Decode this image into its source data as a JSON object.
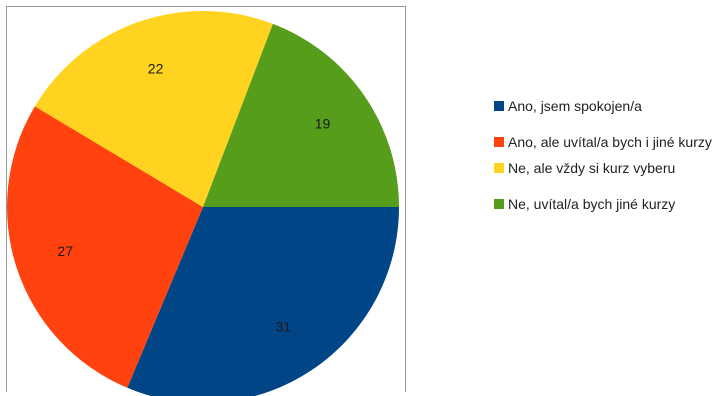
{
  "chart_data": {
    "type": "pie",
    "title": "",
    "legend_position": "right",
    "slices": [
      {
        "label": "Ano, jsem spokojen/a",
        "value": 31,
        "color": "#004586"
      },
      {
        "label": "Ano, ale uvítal/a bych i jiné kurzy",
        "value": 27,
        "color": "#ff420e"
      },
      {
        "label": "Ne, ale vždy si kurz vyberu",
        "value": 22,
        "color": "#ffd320"
      },
      {
        "label": "Ne, uvítal/a bych jiné kurzy",
        "value": 19,
        "color": "#579d1c"
      }
    ]
  }
}
